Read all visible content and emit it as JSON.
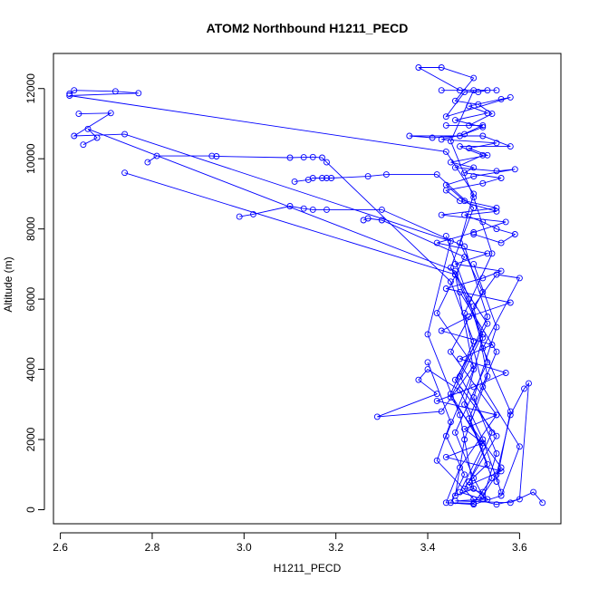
{
  "chart_data": {
    "type": "scatter",
    "title": "ATOM2 Northbound H1211_PECD",
    "xlabel": "H1211_PECD",
    "ylabel": "Altitude (m)",
    "xlim": [
      2.585,
      3.69
    ],
    "ylim": [
      -400,
      13000
    ],
    "x_ticks": [
      2.6,
      2.8,
      3.0,
      3.2,
      3.4,
      3.6
    ],
    "x_tick_labels": [
      "2.6",
      "2.8",
      "3.0",
      "3.2",
      "3.4",
      "3.6"
    ],
    "y_ticks": [
      0,
      2000,
      4000,
      6000,
      8000,
      10000,
      12000
    ],
    "y_tick_labels": [
      "0",
      "2000",
      "4000",
      "6000",
      "8000",
      "10000",
      "12000"
    ],
    "grid": false,
    "legend": "none",
    "series_color": "#0000ff",
    "series": [
      {
        "values": [
          [
            2.62,
            11850
          ],
          [
            2.63,
            11950
          ],
          [
            2.72,
            11920
          ],
          [
            2.77,
            11870
          ],
          [
            2.62,
            11800
          ],
          [
            3.44,
            10200
          ],
          [
            3.5,
            9000
          ],
          [
            3.47,
            7600
          ],
          [
            3.52,
            6200
          ],
          [
            3.45,
            4500
          ],
          [
            3.55,
            2700
          ],
          [
            3.47,
            1200
          ],
          [
            3.44,
            200
          ],
          [
            3.5,
            150
          ],
          [
            3.56,
            400
          ],
          [
            3.6,
            1800
          ],
          [
            3.52,
            3500
          ],
          [
            3.48,
            5600
          ],
          [
            3.54,
            7300
          ],
          [
            3.5,
            8900
          ],
          [
            3.45,
            10500
          ],
          [
            3.5,
            11950
          ],
          [
            3.55,
            11950
          ],
          [
            3.47,
            11950
          ],
          [
            3.38,
            12600
          ],
          [
            3.43,
            12600
          ],
          [
            3.5,
            12300
          ],
          [
            3.46,
            11650
          ],
          [
            3.51,
            11550
          ],
          [
            3.54,
            11280
          ],
          [
            3.49,
            10950
          ],
          [
            3.44,
            10950
          ],
          [
            3.52,
            10950
          ],
          [
            3.47,
            10650
          ],
          [
            3.41,
            10600
          ],
          [
            3.36,
            10650
          ],
          [
            3.52,
            10650
          ],
          [
            3.58,
            10350
          ],
          [
            3.47,
            10350
          ],
          [
            3.52,
            10100
          ],
          [
            3.46,
            9750
          ],
          [
            3.55,
            9650
          ],
          [
            3.59,
            9700
          ],
          [
            3.5,
            9500
          ],
          [
            3.44,
            9250
          ],
          [
            3.48,
            8800
          ],
          [
            3.55,
            8600
          ],
          [
            3.43,
            8400
          ],
          [
            3.57,
            8200
          ],
          [
            3.5,
            7900
          ],
          [
            3.42,
            7600
          ],
          [
            3.53,
            7300
          ],
          [
            3.46,
            7000
          ],
          [
            3.56,
            6800
          ],
          [
            3.52,
            6600
          ],
          [
            3.44,
            6300
          ],
          [
            3.58,
            5900
          ],
          [
            3.49,
            5500
          ],
          [
            3.43,
            5100
          ],
          [
            3.54,
            4700
          ],
          [
            3.47,
            4300
          ],
          [
            3.57,
            3900
          ],
          [
            3.5,
            3500
          ],
          [
            3.42,
            3100
          ],
          [
            3.55,
            2700
          ],
          [
            3.48,
            2300
          ],
          [
            3.52,
            1900
          ],
          [
            3.44,
            1500
          ],
          [
            3.56,
            1100
          ],
          [
            3.49,
            700
          ],
          [
            3.53,
            300
          ],
          [
            3.46,
            250
          ],
          [
            3.58,
            200
          ],
          [
            3.63,
            500
          ],
          [
            3.65,
            200
          ]
        ]
      },
      {
        "values": [
          [
            2.64,
            11280
          ],
          [
            2.71,
            11300
          ],
          [
            2.63,
            10650
          ],
          [
            2.74,
            10700
          ],
          [
            3.45,
            7650
          ],
          [
            3.4,
            5000
          ],
          [
            3.47,
            2700
          ],
          [
            3.5,
            600
          ],
          [
            3.46,
            400
          ],
          [
            3.48,
            2000
          ],
          [
            3.53,
            3800
          ],
          [
            3.5,
            5800
          ],
          [
            3.55,
            6700
          ],
          [
            3.6,
            6600
          ],
          [
            3.52,
            4600
          ],
          [
            3.58,
            2800
          ],
          [
            3.55,
            800
          ]
        ]
      },
      {
        "values": [
          [
            2.65,
            10400
          ],
          [
            2.68,
            10600
          ],
          [
            2.66,
            10850
          ],
          [
            3.46,
            6800
          ],
          [
            3.52,
            5000
          ],
          [
            3.45,
            3200
          ],
          [
            3.56,
            1200
          ],
          [
            3.52,
            400
          ],
          [
            3.5,
            900
          ],
          [
            3.46,
            2200
          ],
          [
            3.53,
            4200
          ],
          [
            3.49,
            6000
          ],
          [
            3.44,
            7800
          ]
        ]
      },
      {
        "values": [
          [
            2.74,
            9600
          ],
          [
            3.46,
            6700
          ],
          [
            3.5,
            4000
          ],
          [
            3.44,
            2100
          ],
          [
            3.48,
            1000
          ],
          [
            3.45,
            200
          ],
          [
            3.5,
            180
          ],
          [
            3.54,
            900
          ],
          [
            3.49,
            2600
          ],
          [
            3.55,
            4500
          ],
          [
            3.47,
            6200
          ]
        ]
      },
      {
        "values": [
          [
            2.79,
            9900
          ],
          [
            2.81,
            10080
          ],
          [
            2.93,
            10080
          ],
          [
            2.94,
            10070
          ],
          [
            3.1,
            10030
          ],
          [
            3.13,
            10040
          ],
          [
            3.15,
            10050
          ],
          [
            3.17,
            10030
          ],
          [
            3.18,
            9900
          ],
          [
            3.45,
            6500
          ],
          [
            3.5,
            4800
          ],
          [
            3.45,
            3300
          ],
          [
            3.52,
            1800
          ],
          [
            3.47,
            500
          ],
          [
            3.52,
            300
          ],
          [
            3.55,
            1600
          ],
          [
            3.5,
            3200
          ],
          [
            3.55,
            5200
          ],
          [
            3.5,
            7000
          ]
        ]
      },
      {
        "values": [
          [
            2.99,
            8350
          ],
          [
            3.02,
            8420
          ],
          [
            3.1,
            8650
          ],
          [
            3.13,
            8580
          ],
          [
            3.15,
            8550
          ],
          [
            3.18,
            8550
          ],
          [
            3.3,
            8550
          ],
          [
            3.48,
            7500
          ],
          [
            3.53,
            5500
          ],
          [
            3.47,
            3800
          ],
          [
            3.54,
            2200
          ],
          [
            3.49,
            800
          ],
          [
            3.53,
            1300
          ],
          [
            3.48,
            3000
          ],
          [
            3.52,
            4900
          ],
          [
            3.46,
            6700
          ]
        ]
      },
      {
        "values": [
          [
            3.11,
            9350
          ],
          [
            3.14,
            9400
          ],
          [
            3.15,
            9450
          ],
          [
            3.17,
            9450
          ],
          [
            3.18,
            9450
          ],
          [
            3.19,
            9450
          ],
          [
            3.27,
            9500
          ],
          [
            3.31,
            9550
          ],
          [
            3.42,
            9550
          ],
          [
            3.5,
            8600
          ],
          [
            3.45,
            6900
          ],
          [
            3.53,
            5300
          ],
          [
            3.46,
            3700
          ],
          [
            3.55,
            2100
          ],
          [
            3.48,
            600
          ],
          [
            3.52,
            500
          ]
        ]
      },
      {
        "values": [
          [
            3.26,
            8250
          ],
          [
            3.27,
            8300
          ],
          [
            3.3,
            8250
          ],
          [
            3.48,
            7200
          ],
          [
            3.42,
            5600
          ],
          [
            3.5,
            4100
          ],
          [
            3.43,
            2800
          ],
          [
            3.29,
            2650
          ],
          [
            3.42,
            3300
          ],
          [
            3.38,
            3700
          ],
          [
            3.4,
            4000
          ],
          [
            3.47,
            3400
          ],
          [
            3.52,
            2000
          ],
          [
            3.56,
            500
          ]
        ]
      },
      {
        "values": [
          [
            3.4,
            4200
          ],
          [
            3.45,
            2500
          ],
          [
            3.42,
            1400
          ],
          [
            3.5,
            300
          ],
          [
            3.55,
            150
          ],
          [
            3.6,
            300
          ],
          [
            3.62,
            3600
          ],
          [
            3.61,
            3450
          ],
          [
            3.58,
            2700
          ],
          [
            3.55,
            1000
          ]
        ]
      },
      {
        "values": [
          [
            3.5,
            7850
          ],
          [
            3.56,
            7600
          ],
          [
            3.59,
            7850
          ],
          [
            3.55,
            8000
          ],
          [
            3.52,
            8200
          ],
          [
            3.48,
            8400
          ],
          [
            3.55,
            8500
          ],
          [
            3.47,
            8800
          ],
          [
            3.44,
            9100
          ],
          [
            3.52,
            9300
          ],
          [
            3.56,
            9450
          ],
          [
            3.48,
            9600
          ],
          [
            3.5,
            9750
          ],
          [
            3.45,
            9900
          ],
          [
            3.53,
            10100
          ],
          [
            3.49,
            10300
          ],
          [
            3.55,
            10450
          ],
          [
            3.43,
            10550
          ],
          [
            3.48,
            10700
          ],
          [
            3.52,
            10900
          ],
          [
            3.46,
            11100
          ],
          [
            3.53,
            11300
          ],
          [
            3.49,
            11500
          ],
          [
            3.56,
            11700
          ],
          [
            3.58,
            11750
          ],
          [
            3.44,
            11200
          ],
          [
            3.48,
            11900
          ],
          [
            3.51,
            11900
          ],
          [
            3.53,
            11950
          ],
          [
            3.43,
            11950
          ]
        ]
      }
    ]
  }
}
